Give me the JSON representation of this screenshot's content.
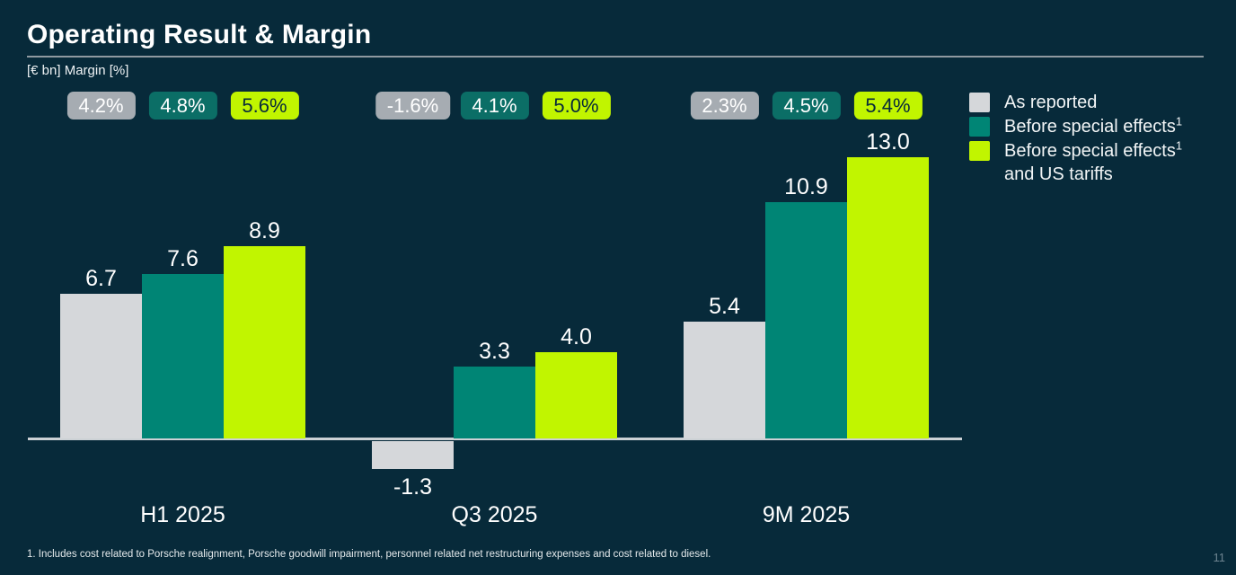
{
  "slide": {
    "title": "Operating Result & Margin",
    "subtitle": "[€ bn] Margin [%]",
    "footnote": "1. Includes cost related to Porsche realignment, Porsche goodwill impairment, personnel related net restructuring expenses and cost related to diesel.",
    "page_number": "11"
  },
  "colors": {
    "background": "#072a3a",
    "bar_as_reported": "#d5d7da",
    "bar_before_special_effects": "#008575",
    "bar_before_special_effects_us_tariffs": "#c1f500",
    "badge_gray": "#a6acb2",
    "badge_teal": "#0b6e66",
    "badge_lime": "#c1f500",
    "axis_line": "#ccd1d5",
    "title_rule": "#8f99a0",
    "text": "#ffffff"
  },
  "legend": {
    "items": [
      {
        "label": "As reported",
        "sup": "",
        "label_line2": "",
        "swatch": "#d5d7da"
      },
      {
        "label": "Before special effects",
        "sup": "1",
        "label_line2": "",
        "swatch": "#008575"
      },
      {
        "label": "Before special effects",
        "sup": "1",
        "label_line2": "and US tariffs",
        "swatch": "#c1f500"
      }
    ]
  },
  "chart_data": {
    "type": "bar",
    "title": "Operating Result & Margin",
    "unit_label": "[€ bn] Margin [%]",
    "categories": [
      "H1 2025",
      "Q3 2025",
      "9M 2025"
    ],
    "series": [
      {
        "name": "As reported",
        "values": [
          6.7,
          -1.3,
          5.4
        ],
        "margins": [
          "4.2%",
          "-1.6%",
          "2.3%"
        ],
        "color": "#d5d7da",
        "badge_color": "#a6acb2",
        "badge_text_color": "#ffffff"
      },
      {
        "name": "Before special effects¹",
        "values": [
          7.6,
          3.3,
          10.9
        ],
        "margins": [
          "4.8%",
          "4.1%",
          "4.5%"
        ],
        "color": "#008575",
        "badge_color": "#0b6e66",
        "badge_text_color": "#ffffff"
      },
      {
        "name": "Before special effects¹ and US tariffs",
        "values": [
          8.9,
          4.0,
          13.0
        ],
        "margins": [
          "5.6%",
          "5.0%",
          "5.4%"
        ],
        "color": "#c1f500",
        "badge_color": "#c1f500",
        "badge_text_color": "#072a3a"
      }
    ],
    "value_format": "0.0",
    "ylim": [
      -2,
      14
    ],
    "grid": false,
    "legend_position": "top-right"
  }
}
